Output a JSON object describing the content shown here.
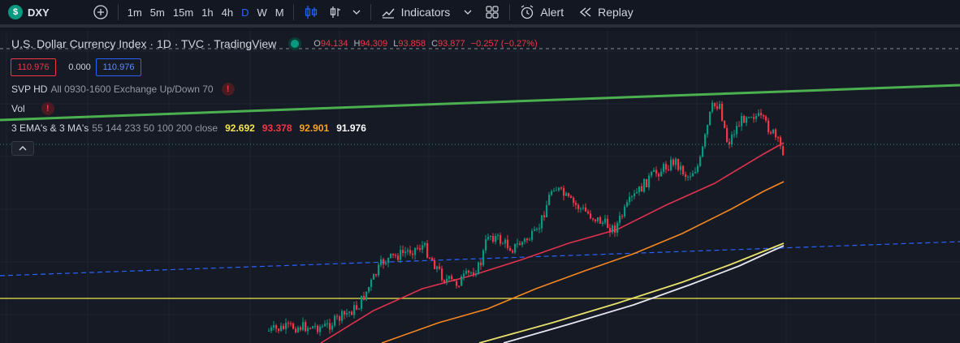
{
  "toolbar": {
    "symbol": "DXY",
    "logo_glyph": "$",
    "intervals": [
      "1m",
      "5m",
      "15m",
      "1h",
      "4h",
      "D",
      "W",
      "M"
    ],
    "active_interval": "D",
    "indicators_label": "Indicators",
    "alert_label": "Alert",
    "replay_label": "Replay"
  },
  "legend": {
    "title": "U.S. Dollar Currency Index · 1D · TVC · TradingView",
    "o_label": "O",
    "o_value": "94.134",
    "h_label": "H",
    "h_value": "94.309",
    "l_label": "L",
    "l_value": "93.858",
    "c_label": "C",
    "c_value": "93.877",
    "change": "−0.257 (−0.27%)"
  },
  "price_boxes": {
    "bid": "110.976",
    "spread": "0.000",
    "ask": "110.976"
  },
  "indicators": {
    "svp_name": "SVP HD",
    "svp_args": "All 0930-1600 Exchange Up/Down 70",
    "vol_name": "Vol",
    "ema_name": "3 EMA's & 3 MA's",
    "ema_args": "55 144 233 50 100 200 close",
    "ema_values": [
      "92.692",
      "93.378",
      "92.901",
      "91.976"
    ],
    "ema_colors": [
      "#f5e64b",
      "#f23645",
      "#f7a21b",
      "#ffffff"
    ],
    "warn_glyph": "!"
  },
  "colors": {
    "up": "#089981",
    "down": "#f23645",
    "trendline": "#4caf50",
    "ema_red": "#e0324d",
    "ema_orange": "#f5871f",
    "ema_yellow": "#e8e26a",
    "ema_white": "#e6e6f0",
    "support": "#c9c34a",
    "channel": "#2962ff"
  },
  "icons": [
    "plus-circle-icon",
    "candles-icon",
    "bar-style-icon",
    "chevron-down-icon",
    "indicators-icon",
    "layout-grid-icon",
    "alarm-clock-icon",
    "replay-icon"
  ]
}
